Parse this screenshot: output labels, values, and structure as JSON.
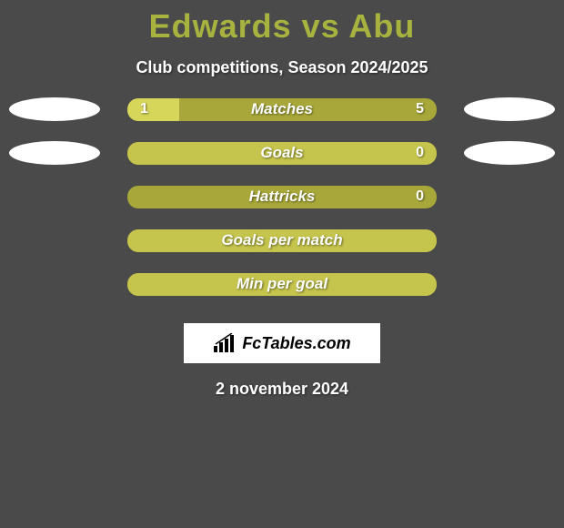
{
  "title": "Edwards vs Abu",
  "subtitle": "Club competitions, Season 2024/2025",
  "date": "2 november 2024",
  "logo_text": "FcTables.com",
  "colors": {
    "background": "#4a4a4a",
    "title": "#a8b33f",
    "text_white": "#ffffff",
    "bar_base": "#a8a83a",
    "bar_fill": "#d6d65a",
    "bar_full": "#c5c54d",
    "ellipse": "#ffffff",
    "logo_bg": "#ffffff",
    "logo_fg": "#000000"
  },
  "player_left": "Edwards",
  "player_right": "Abu",
  "stats": [
    {
      "label": "Matches",
      "left_value": "1",
      "right_value": "5",
      "left_fill_pct": 16.7,
      "right_fill_pct": 0,
      "show_left_ellipse": true,
      "show_right_ellipse": true,
      "show_full_fill": false,
      "show_left_val": true,
      "show_right_val": true
    },
    {
      "label": "Goals",
      "left_value": "",
      "right_value": "0",
      "left_fill_pct": 0,
      "right_fill_pct": 0,
      "show_left_ellipse": true,
      "show_right_ellipse": true,
      "show_full_fill": true,
      "show_left_val": false,
      "show_right_val": true
    },
    {
      "label": "Hattricks",
      "left_value": "",
      "right_value": "0",
      "left_fill_pct": 0,
      "right_fill_pct": 0,
      "show_left_ellipse": false,
      "show_right_ellipse": false,
      "show_full_fill": false,
      "show_left_val": false,
      "show_right_val": true
    },
    {
      "label": "Goals per match",
      "left_value": "",
      "right_value": "",
      "left_fill_pct": 0,
      "right_fill_pct": 0,
      "show_left_ellipse": false,
      "show_right_ellipse": false,
      "show_full_fill": true,
      "show_left_val": false,
      "show_right_val": false
    },
    {
      "label": "Min per goal",
      "left_value": "",
      "right_value": "",
      "left_fill_pct": 0,
      "right_fill_pct": 0,
      "show_left_ellipse": false,
      "show_right_ellipse": false,
      "show_full_fill": true,
      "show_left_val": false,
      "show_right_val": false
    }
  ]
}
